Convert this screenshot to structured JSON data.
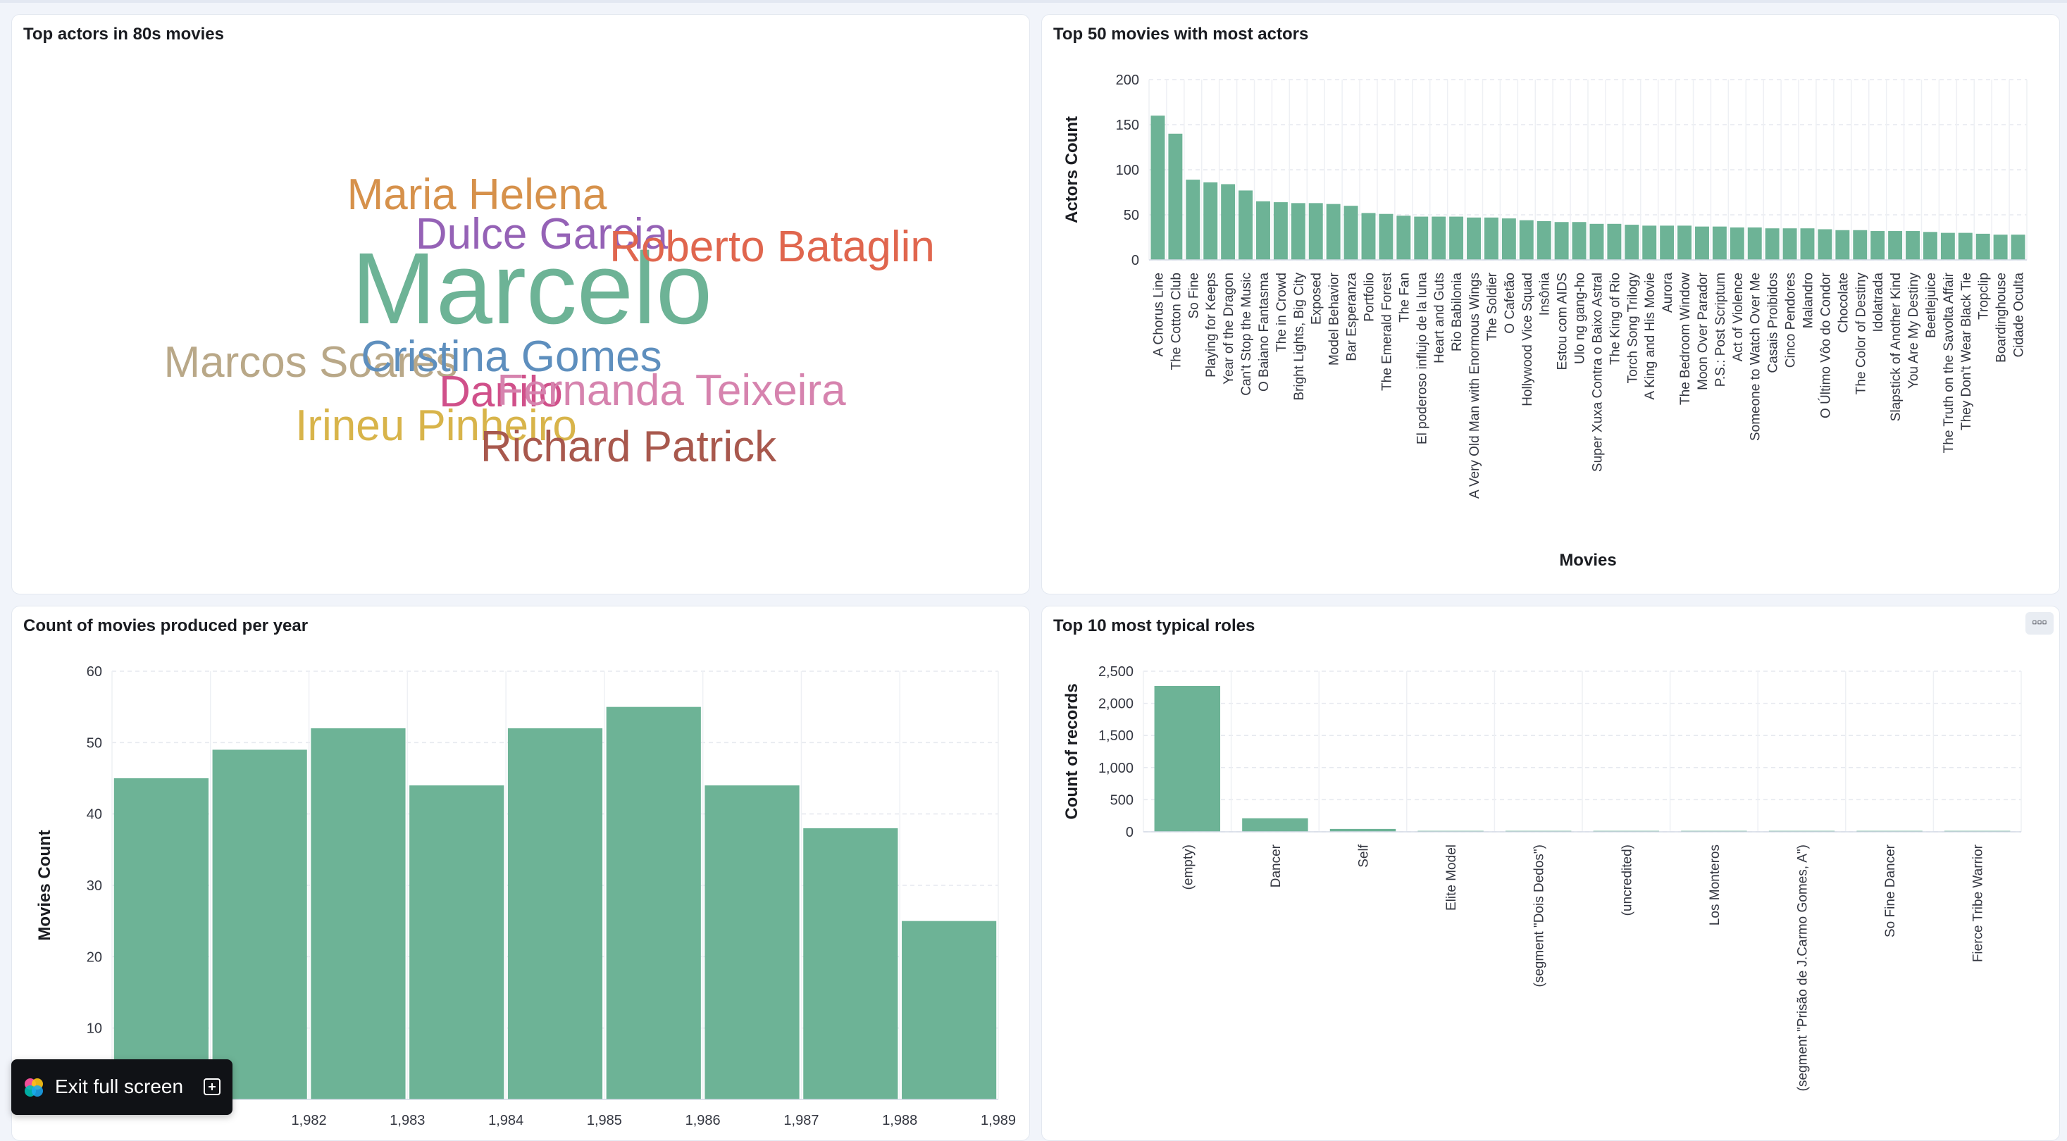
{
  "panels": {
    "wordcloud": {
      "title": "Top actors in 80s movies",
      "words": [
        {
          "text": "Marcelo",
          "size": 1.0,
          "color": "#6db396"
        },
        {
          "text": "Maria Helena",
          "size": 0.25,
          "color": "#d6914b"
        },
        {
          "text": "Dulce Garcia",
          "size": 0.25,
          "color": "#9562b6"
        },
        {
          "text": "Roberto Bataglin",
          "size": 0.25,
          "color": "#e0664e"
        },
        {
          "text": "Marcos Soares",
          "size": 0.25,
          "color": "#b9a888"
        },
        {
          "text": "Cristina Gomes",
          "size": 0.25,
          "color": "#5e8fbe"
        },
        {
          "text": "Danilo",
          "size": 0.25,
          "color": "#d0508a"
        },
        {
          "text": "Fernanda Teixeira",
          "size": 0.25,
          "color": "#d683ae"
        },
        {
          "text": "Irineu Pinheiro",
          "size": 0.25,
          "color": "#d8b44a"
        },
        {
          "text": "Richard Patrick",
          "size": 0.25,
          "color": "#a8584d"
        }
      ]
    },
    "movies_actors": {
      "title": "Top 50 movies with most actors"
    },
    "per_year": {
      "title": "Count of movies produced per year"
    },
    "roles": {
      "title": "Top 10 most typical roles",
      "menu_icon": "more-options-icon"
    }
  },
  "exit_button": {
    "label": "Exit full screen",
    "logo_icon": "kibana-logo-icon",
    "fullscreen_icon": "fullscreen-exit-icon"
  },
  "chart_data": [
    {
      "type": "bar",
      "title": "Top 50 movies with most actors",
      "xlabel": "Movies",
      "ylabel": "Actors Count",
      "ylim": [
        0,
        200
      ],
      "yticks": [
        0,
        50,
        100,
        150,
        200
      ],
      "grid": true,
      "color": "#6db396",
      "categories": [
        "A Chorus Line",
        "The Cotton Club",
        "So Fine",
        "Playing for Keeps",
        "Year of the Dragon",
        "Can't Stop the Music",
        "O Baiano Fantasma",
        "The in Crowd",
        "Bright Lights, Big City",
        "Exposed",
        "Model Behavior",
        "Bar Esperanza",
        "Portfolio",
        "The Emerald Forest",
        "The Fan",
        "El poderoso influjo de la luna",
        "Heart and Guts",
        "Rio Babilonia",
        "A Very Old Man with Enormous Wings",
        "The Soldier",
        "O Cafetão",
        "Hollywood Vice Squad",
        "Insônia",
        "Estou com AIDS",
        "Ulo ng gang-ho",
        "Super Xuxa Contra o Baixo Astral",
        "The King of Rio",
        "Torch Song Trilogy",
        "A King and His Movie",
        "Aurora",
        "The Bedroom Window",
        "Moon Over Parador",
        "P.S.: Post Scriptum",
        "Act of Violence",
        "Someone to Watch Over Me",
        "Casais Proibidos",
        "Cinco Pendores",
        "Malandro",
        "O Último Vôo do Condor",
        "Chocolate",
        "The Color of Destiny",
        "Idolatrada",
        "Slapstick of Another Kind",
        "You Are My Destiny",
        "Beetlejuice",
        "The Truth on the Savolta Affair",
        "They Don't Wear Black Tie",
        "Tropclip",
        "Boardinghouse",
        "Cidade Oculta"
      ],
      "values": [
        160,
        140,
        89,
        86,
        84,
        77,
        65,
        64,
        63,
        63,
        62,
        60,
        52,
        51,
        49,
        48,
        48,
        48,
        47,
        47,
        46,
        44,
        43,
        42,
        42,
        40,
        40,
        39,
        38,
        38,
        38,
        37,
        37,
        36,
        36,
        35,
        35,
        35,
        34,
        33,
        33,
        32,
        32,
        32,
        31,
        30,
        30,
        29,
        28,
        28
      ]
    },
    {
      "type": "bar",
      "title": "Count of movies produced per year",
      "xlabel": "",
      "ylabel": "Movies Count",
      "ylim": [
        0,
        60
      ],
      "yticks": [
        10,
        20,
        30,
        40,
        50,
        60
      ],
      "xtick_labels": [
        "1,982",
        "1,983",
        "1,984",
        "1,985",
        "1,986",
        "1,987",
        "1,988",
        "1,989"
      ],
      "grid": true,
      "color": "#6db396",
      "x": [
        1980,
        1981,
        1982,
        1983,
        1984,
        1985,
        1986,
        1987,
        1988
      ],
      "values": [
        45,
        49,
        52,
        44,
        52,
        55,
        44,
        38,
        25
      ]
    },
    {
      "type": "bar",
      "title": "Top 10 most typical roles",
      "xlabel": "",
      "ylabel": "Count of records",
      "ylim": [
        0,
        2500
      ],
      "yticks": [
        0,
        500,
        1000,
        1500,
        2000,
        2500
      ],
      "ytick_labels": [
        "0",
        "500",
        "1,000",
        "1,500",
        "2,000",
        "2,500"
      ],
      "grid": true,
      "color": "#6db396",
      "categories": [
        "(empty)",
        "Dancer",
        "Self",
        "Elite Model",
        "(segment \"Dois Dedos\")",
        "(uncredited)",
        "Los Monteros",
        "(segment \"Prisão de J.Carmo Gomes, A\")",
        "So Fine Dancer",
        "Fierce Tribe Warrior"
      ],
      "values": [
        2270,
        210,
        45,
        15,
        15,
        15,
        15,
        15,
        15,
        15
      ]
    }
  ]
}
